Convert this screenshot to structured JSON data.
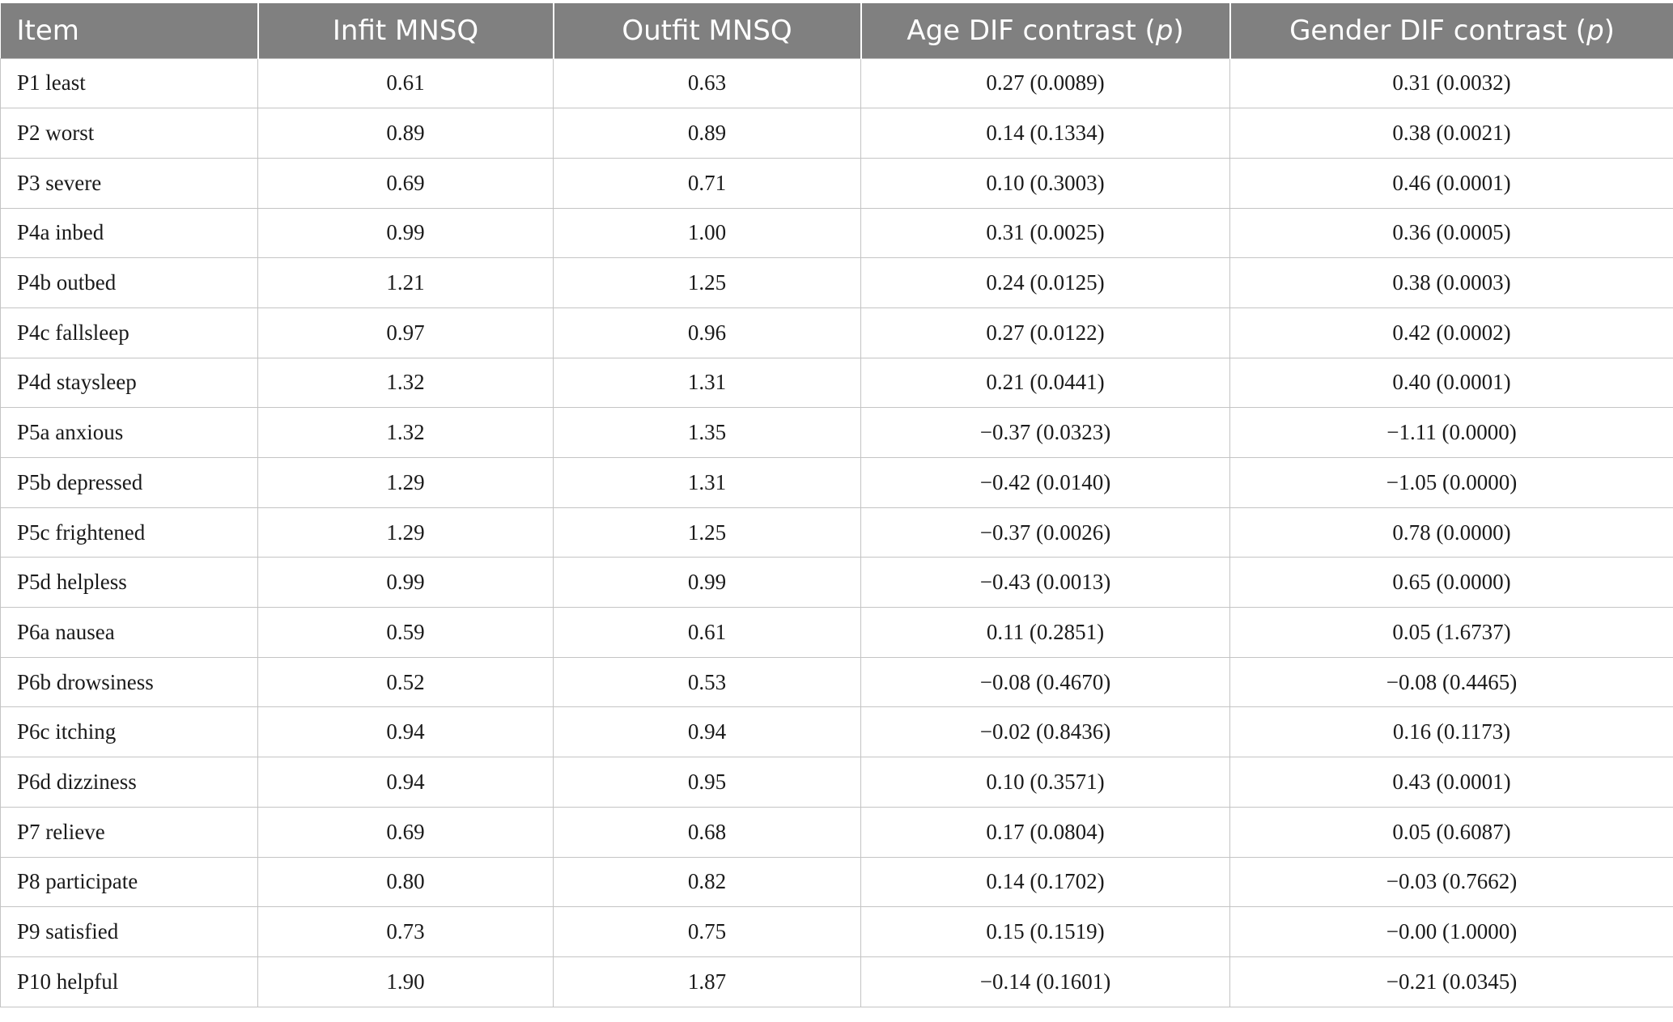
{
  "table": {
    "headers": [
      {
        "text": "Item"
      },
      {
        "text": "Infit MNSQ"
      },
      {
        "text": "Outfit MNSQ"
      },
      {
        "pre": "Age DIF contrast (",
        "ital": "p",
        "post": ")"
      },
      {
        "pre": "Gender DIF contrast (",
        "ital": "p",
        "post": ")"
      }
    ],
    "rows": [
      [
        "P1 least",
        "0.61",
        "0.63",
        "0.27 (0.0089)",
        "0.31 (0.0032)"
      ],
      [
        "P2 worst",
        "0.89",
        "0.89",
        "0.14 (0.1334)",
        "0.38 (0.0021)"
      ],
      [
        "P3 severe",
        "0.69",
        "0.71",
        "0.10 (0.3003)",
        "0.46 (0.0001)"
      ],
      [
        "P4a inbed",
        "0.99",
        "1.00",
        "0.31 (0.0025)",
        "0.36 (0.0005)"
      ],
      [
        "P4b outbed",
        "1.21",
        "1.25",
        "0.24 (0.0125)",
        "0.38 (0.0003)"
      ],
      [
        "P4c fallsleep",
        "0.97",
        "0.96",
        "0.27 (0.0122)",
        "0.42 (0.0002)"
      ],
      [
        "P4d staysleep",
        "1.32",
        "1.31",
        "0.21 (0.0441)",
        "0.40 (0.0001)"
      ],
      [
        "P5a anxious",
        "1.32",
        "1.35",
        "−0.37 (0.0323)",
        "−1.11 (0.0000)"
      ],
      [
        "P5b depressed",
        "1.29",
        "1.31",
        "−0.42 (0.0140)",
        "−1.05 (0.0000)"
      ],
      [
        "P5c frightened",
        "1.29",
        "1.25",
        "−0.37 (0.0026)",
        "0.78 (0.0000)"
      ],
      [
        "P5d helpless",
        "0.99",
        "0.99",
        "−0.43 (0.0013)",
        "0.65 (0.0000)"
      ],
      [
        "P6a nausea",
        "0.59",
        "0.61",
        "0.11 (0.2851)",
        "0.05 (1.6737)"
      ],
      [
        "P6b drowsiness",
        "0.52",
        "0.53",
        "−0.08 (0.4670)",
        "−0.08 (0.4465)"
      ],
      [
        "P6c itching",
        "0.94",
        "0.94",
        "−0.02 (0.8436)",
        "0.16 (0.1173)"
      ],
      [
        "P6d dizziness",
        "0.94",
        "0.95",
        "0.10 (0.3571)",
        "0.43 (0.0001)"
      ],
      [
        "P7 relieve",
        "0.69",
        "0.68",
        "0.17 (0.0804)",
        "0.05 (0.6087)"
      ],
      [
        "P8 participate",
        "0.80",
        "0.82",
        "0.14 (0.1702)",
        "−0.03 (0.7662)"
      ],
      [
        "P9 satisfied",
        "0.73",
        "0.75",
        "0.15 (0.1519)",
        "−0.00 (1.0000)"
      ],
      [
        "P10 helpful",
        "1.90",
        "1.87",
        "−0.14 (0.1601)",
        "−0.21 (0.0345)"
      ]
    ]
  },
  "colors": {
    "header_bg": "#808080",
    "header_text": "#ffffff",
    "grid": "#c4c4c4"
  }
}
